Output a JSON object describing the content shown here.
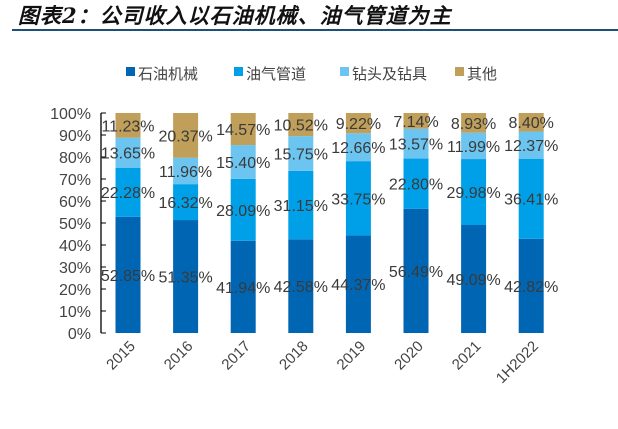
{
  "title": "图表2：公司收入以石油机械、油气管道为主",
  "chart_data": {
    "type": "bar",
    "stacked": true,
    "categories": [
      "2015",
      "2016",
      "2017",
      "2018",
      "2019",
      "2020",
      "2021",
      "1H2022"
    ],
    "series": [
      {
        "name": "石油机械",
        "color": "#0066b3",
        "values": [
          52.85,
          51.35,
          41.94,
          42.58,
          44.37,
          56.49,
          49.09,
          42.82
        ]
      },
      {
        "name": "油气管道",
        "color": "#00a0e9",
        "values": [
          22.28,
          16.32,
          28.09,
          31.15,
          33.75,
          22.8,
          29.98,
          36.41
        ]
      },
      {
        "name": "钻头及钻具",
        "color": "#6cc5f0",
        "values": [
          13.65,
          11.96,
          15.4,
          15.75,
          12.66,
          13.57,
          11.99,
          12.37
        ]
      },
      {
        "name": "其他",
        "color": "#bf9f5a",
        "values": [
          11.23,
          20.37,
          14.57,
          10.52,
          9.22,
          7.14,
          8.93,
          8.4
        ]
      }
    ],
    "yticks": [
      "0%",
      "10%",
      "20%",
      "30%",
      "40%",
      "50%",
      "60%",
      "70%",
      "80%",
      "90%",
      "100%"
    ],
    "ylim": [
      0,
      100
    ],
    "legend": "top",
    "grid": false
  }
}
